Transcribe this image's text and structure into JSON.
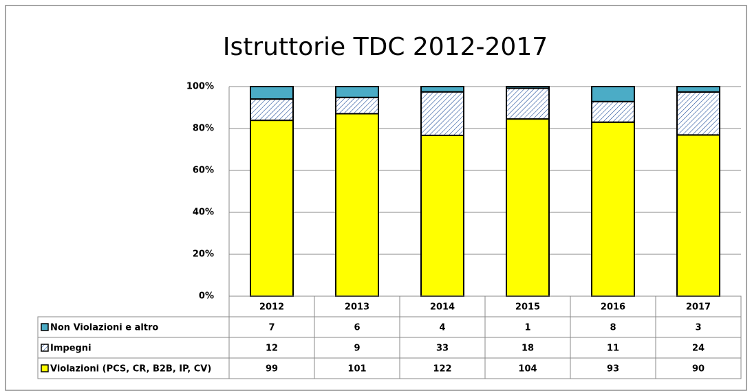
{
  "chart_data": {
    "type": "stacked_percent_bar",
    "title": "Istruttorie TDC 2012-2017",
    "categories": [
      "2012",
      "2013",
      "2014",
      "2015",
      "2016",
      "2017"
    ],
    "series": [
      {
        "name": "Non Violazioni e altro",
        "color": "#4bacc6",
        "values": [
          7,
          6,
          4,
          1,
          8,
          3
        ]
      },
      {
        "name": "Impegni",
        "color": "hatch",
        "values": [
          12,
          9,
          33,
          18,
          11,
          24
        ]
      },
      {
        "name": "Violazioni (PCS, CR, B2B, IP, CV)",
        "color": "#ffff00",
        "values": [
          99,
          101,
          122,
          104,
          93,
          90
        ]
      }
    ],
    "ylim": [
      0,
      100
    ],
    "yticks": [
      {
        "value": 0,
        "label": "0%"
      },
      {
        "value": 20,
        "label": "20%"
      },
      {
        "value": 40,
        "label": "40%"
      },
      {
        "value": 60,
        "label": "60%"
      },
      {
        "value": 80,
        "label": "80%"
      },
      {
        "value": 100,
        "label": "100%"
      }
    ],
    "grid": true
  }
}
